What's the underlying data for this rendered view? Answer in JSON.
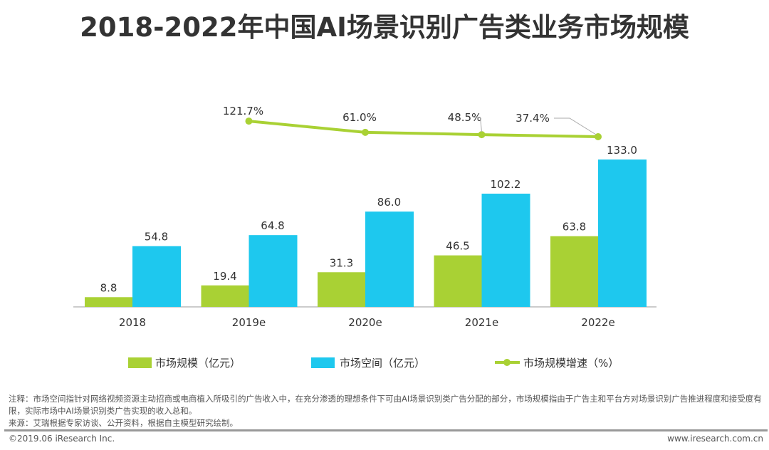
{
  "title": "2018-2022年中国AI场景识别广告类业务市场规模",
  "chart_data": {
    "type": "bar",
    "title": "2018-2022年中国AI场景识别广告类业务市场规模",
    "categories": [
      "2018",
      "2019e",
      "2020e",
      "2021e",
      "2022e"
    ],
    "series": [
      {
        "name": "市场规模（亿元）",
        "type": "bar",
        "color": "#a9d134",
        "values": [
          8.8,
          19.4,
          31.3,
          46.5,
          63.8
        ]
      },
      {
        "name": "市场空间（亿元）",
        "type": "bar",
        "color": "#1ec8ee",
        "values": [
          54.8,
          64.8,
          86.0,
          102.2,
          133.0
        ]
      },
      {
        "name": "市场规模增速（%）",
        "type": "line",
        "color": "#a9d134",
        "values": [
          null,
          121.7,
          61.0,
          48.5,
          37.4
        ],
        "labels": [
          "",
          "121.7%",
          "61.0%",
          "48.5%",
          "37.4%"
        ]
      }
    ],
    "legend_position": "bottom",
    "grid": false
  },
  "notes": {
    "note": "注释：市场空间指针对网络视频资源主动招商或电商植入所吸引的广告收入中，在充分渗透的理想条件下可由AI场景识别类广告分配的部分，市场规模指由于广告主和平台方对场景识别广告推进程度和接受度有限，实际市场中AI场景识别类广告实现的收入总和。",
    "source": "来源：艾瑞根据专家访谈、公开资料，根据自主模型研究绘制。"
  },
  "footer": {
    "copyright": "©2019.06 iResearch Inc.",
    "website": "www.iresearch.com.cn"
  }
}
